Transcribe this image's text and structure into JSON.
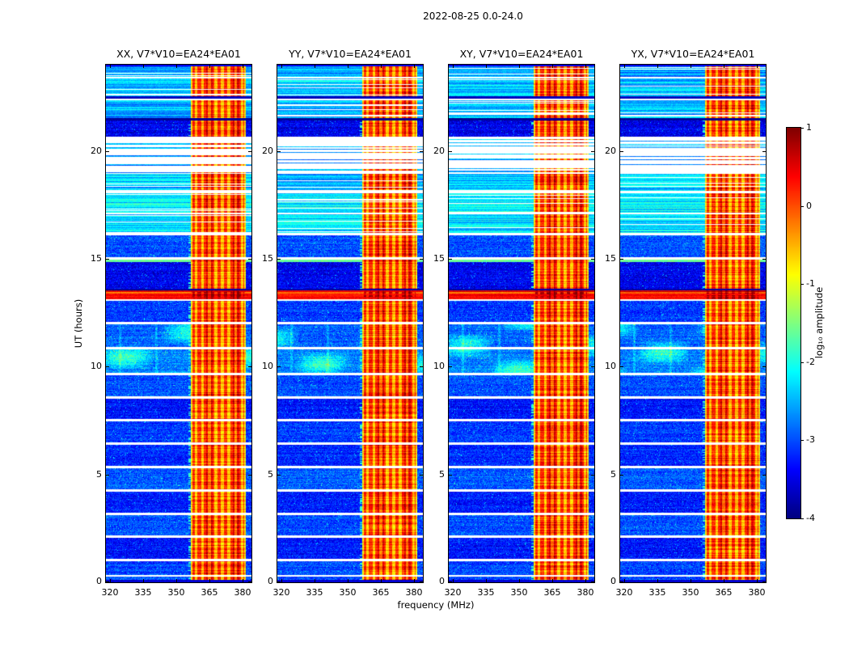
{
  "chart_data": {
    "type": "heatmap",
    "title": "2022-08-25 0.0-24.0",
    "panels": [
      {
        "label": "XX, V7*V10=EA24*EA01"
      },
      {
        "label": "YY, V7*V10=EA24*EA01"
      },
      {
        "label": "XY, V7*V10=EA24*EA01"
      },
      {
        "label": "YX, V7*V10=EA24*EA01"
      }
    ],
    "xaxis": {
      "label": "frequency (MHz)",
      "range": [
        318,
        384
      ],
      "ticks": [
        320,
        335,
        350,
        365,
        380
      ]
    },
    "yaxis": {
      "label": "UT (hours)",
      "range": [
        0,
        24
      ],
      "ticks": [
        0,
        5,
        10,
        15,
        20
      ]
    },
    "colorbar": {
      "label": "log₁₀ amplitude",
      "range": [
        -4,
        1
      ],
      "ticks": [
        1,
        0,
        -1,
        -2,
        -3,
        -4
      ],
      "colormap": "jet"
    },
    "grid": false,
    "features": {
      "rfi_band": {
        "f0": 356.5,
        "f1": 381.5,
        "base": -0.55,
        "channel_period_mhz": 3,
        "channel_duty": 0.55,
        "strong_cols": [
          [
            363.5,
            366.5
          ],
          [
            375.5,
            378.5
          ]
        ]
      },
      "green_line_mhz": 356.0,
      "segments": [
        {
          "t0": 0.0,
          "t1": 0.12,
          "type": "dark",
          "level": -3.6
        },
        {
          "t0": 0.12,
          "t1": 0.25,
          "type": "noise",
          "level": -3.0
        },
        {
          "t0": 0.25,
          "t1": 0.34,
          "type": "gap",
          "level": 0
        },
        {
          "t0": 0.34,
          "t1": 0.97,
          "type": "noise",
          "level": -3.05
        },
        {
          "t0": 0.97,
          "t1": 1.08,
          "type": "gap",
          "level": 0
        },
        {
          "t0": 1.08,
          "t1": 2.05,
          "type": "noise",
          "level": -3.3
        },
        {
          "t0": 2.05,
          "t1": 2.16,
          "type": "gap",
          "level": 0
        },
        {
          "t0": 2.16,
          "t1": 3.13,
          "type": "noise",
          "level": -3.0
        },
        {
          "t0": 3.13,
          "t1": 3.24,
          "type": "gap",
          "level": 0
        },
        {
          "t0": 3.24,
          "t1": 4.21,
          "type": "noise",
          "level": -3.25
        },
        {
          "t0": 4.21,
          "t1": 4.32,
          "type": "gap",
          "level": 0
        },
        {
          "t0": 4.32,
          "t1": 5.29,
          "type": "noise",
          "level": -2.95
        },
        {
          "t0": 5.29,
          "t1": 5.4,
          "type": "gap",
          "level": 0
        },
        {
          "t0": 5.4,
          "t1": 6.37,
          "type": "noise",
          "level": -3.2
        },
        {
          "t0": 6.37,
          "t1": 6.48,
          "type": "gap",
          "level": 0
        },
        {
          "t0": 6.48,
          "t1": 7.45,
          "type": "noise",
          "level": -3.1
        },
        {
          "t0": 7.45,
          "t1": 7.56,
          "type": "gap",
          "level": 0
        },
        {
          "t0": 7.56,
          "t1": 8.53,
          "type": "noise",
          "level": -3.3
        },
        {
          "t0": 8.53,
          "t1": 8.64,
          "type": "gap",
          "level": 0
        },
        {
          "t0": 8.64,
          "t1": 9.61,
          "type": "noise",
          "level": -3.0
        },
        {
          "t0": 9.61,
          "t1": 9.72,
          "type": "gap",
          "level": 0
        },
        {
          "t0": 9.72,
          "t1": 10.8,
          "type": "cloud",
          "level": -2.75
        },
        {
          "t0": 10.8,
          "t1": 10.91,
          "type": "gap",
          "level": 0
        },
        {
          "t0": 10.91,
          "t1": 11.95,
          "type": "cloud",
          "level": -2.9
        },
        {
          "t0": 11.95,
          "t1": 12.06,
          "type": "gap",
          "level": 0
        },
        {
          "t0": 12.06,
          "t1": 13.05,
          "type": "noise",
          "level": -3.1
        },
        {
          "t0": 13.05,
          "t1": 13.14,
          "type": "gap",
          "level": 0
        },
        {
          "t0": 13.14,
          "t1": 13.38,
          "type": "flare",
          "level": 0.35
        },
        {
          "t0": 13.38,
          "t1": 13.45,
          "type": "flare",
          "level": -0.2
        },
        {
          "t0": 13.45,
          "t1": 13.52,
          "type": "flare",
          "level": 0.6
        },
        {
          "t0": 13.52,
          "t1": 13.62,
          "type": "dark",
          "level": -3.8
        },
        {
          "t0": 13.62,
          "t1": 14.85,
          "type": "noise",
          "level": -3.45
        },
        {
          "t0": 14.85,
          "t1": 14.95,
          "type": "line",
          "level": -1.6
        },
        {
          "t0": 14.95,
          "t1": 15.06,
          "type": "gap",
          "level": 0
        },
        {
          "t0": 15.06,
          "t1": 16.1,
          "type": "noise",
          "level": -3.0
        },
        {
          "t0": 16.1,
          "t1": 16.2,
          "type": "gap",
          "level": 0
        },
        {
          "t0": 16.2,
          "t1": 17.05,
          "type": "stripes",
          "level": -2.25
        },
        {
          "t0": 17.05,
          "t1": 17.15,
          "type": "gap",
          "level": 0
        },
        {
          "t0": 17.15,
          "t1": 18.05,
          "type": "stripes",
          "level": -2.15
        },
        {
          "t0": 18.05,
          "t1": 18.15,
          "type": "gap",
          "level": 0
        },
        {
          "t0": 18.15,
          "t1": 18.95,
          "type": "stripes",
          "level": -2.35
        },
        {
          "t0": 18.95,
          "t1": 20.55,
          "type": "sparse",
          "level": -2.3
        },
        {
          "t0": 20.55,
          "t1": 20.68,
          "type": "gap",
          "level": 0
        },
        {
          "t0": 20.68,
          "t1": 21.42,
          "type": "noise",
          "level": -3.45
        },
        {
          "t0": 21.42,
          "t1": 21.52,
          "type": "dark",
          "level": -3.9
        },
        {
          "t0": 21.52,
          "t1": 22.35,
          "type": "stripes",
          "level": -2.45
        },
        {
          "t0": 22.35,
          "t1": 22.44,
          "type": "gap",
          "level": 0
        },
        {
          "t0": 22.44,
          "t1": 22.52,
          "type": "dark",
          "level": -3.7
        },
        {
          "t0": 22.52,
          "t1": 23.35,
          "type": "stripes",
          "level": -2.35
        },
        {
          "t0": 23.35,
          "t1": 23.44,
          "type": "gap",
          "level": 0
        },
        {
          "t0": 23.44,
          "t1": 23.92,
          "type": "stripes",
          "level": -2.55
        },
        {
          "t0": 23.92,
          "t1": 24.01,
          "type": "dark",
          "level": -3.5
        }
      ]
    }
  }
}
